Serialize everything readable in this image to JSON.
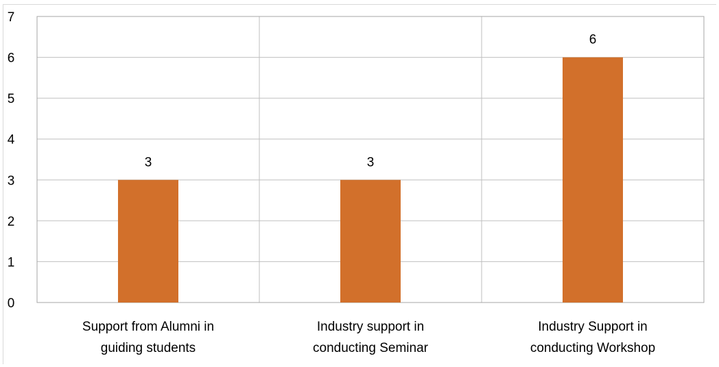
{
  "chart_data": {
    "type": "bar",
    "categories": [
      [
        "Support from Alumni in",
        "guiding students"
      ],
      [
        "Industry support in",
        "conducting Seminar"
      ],
      [
        "Industry Support in",
        "conducting Workshop"
      ]
    ],
    "values": [
      3,
      3,
      6
    ],
    "data_labels": [
      "3",
      "3",
      "6"
    ],
    "ylim": [
      0,
      7
    ],
    "yticks": [
      0,
      1,
      2,
      3,
      4,
      5,
      6,
      7
    ],
    "grid": true,
    "legend": "none",
    "bar_color": "#D2702B"
  }
}
